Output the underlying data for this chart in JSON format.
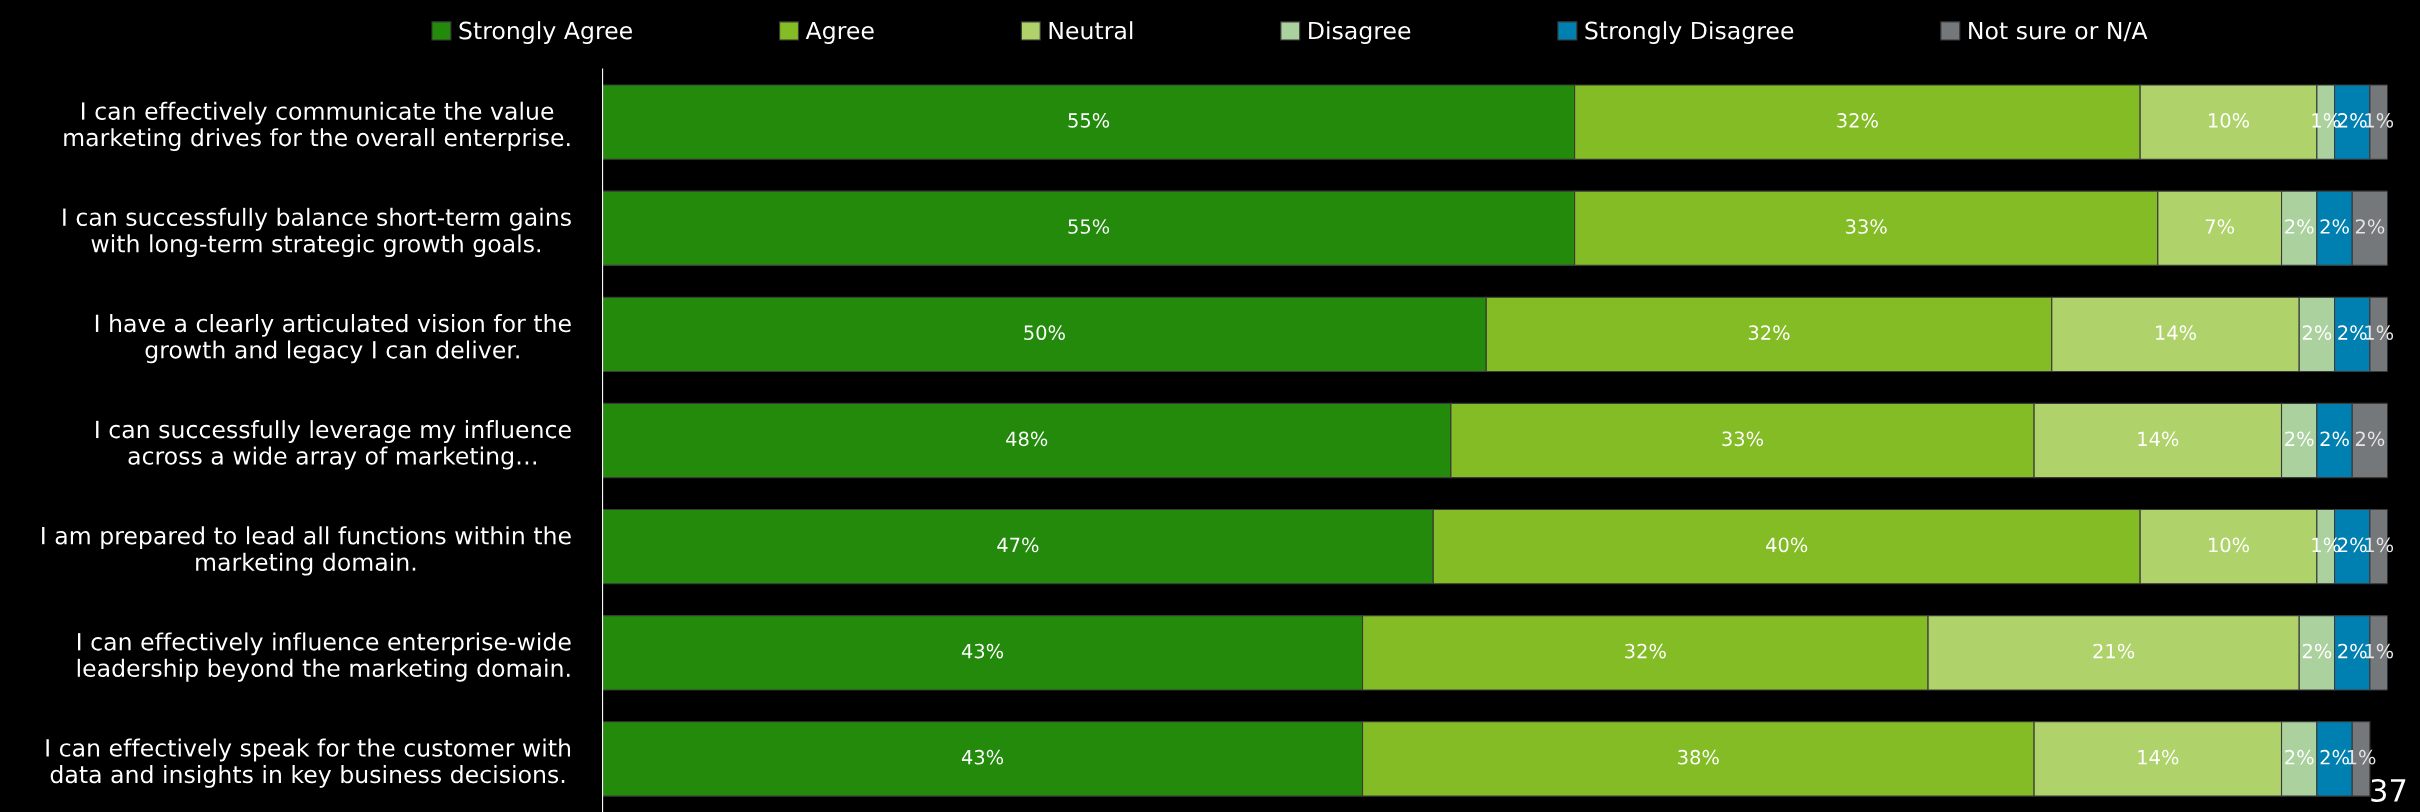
{
  "chart_data": {
    "type": "bar",
    "orientation": "horizontal",
    "stacked": true,
    "legend": "top",
    "grid": false,
    "tick_labels": "y",
    "categories": [
      "I can effectively communicate the value\nmarketing drives for the overall enterprise.",
      "I can successfully balance short-term gains\nwith long-term strategic growth goals.",
      "I have a clearly articulated vision for the\ngrowth and legacy I can deliver.",
      "I can successfully leverage my influence\nacross a wide array of marketing…",
      "I am prepared to lead all functions within the\nmarketing domain.",
      "I can effectively influence enterprise-wide\nleadership beyond the marketing domain.",
      "I can effectively speak for the customer with\ndata and insights in key business decisions."
    ],
    "series": [
      {
        "name": "Strongly Agree",
        "color": "#238a0c",
        "values": [
          55,
          55,
          50,
          48,
          47,
          43,
          43
        ],
        "value_labels": [
          "55%",
          "55%",
          "50%",
          "48%",
          "47%",
          "43%",
          "43%"
        ]
      },
      {
        "name": "Agree",
        "color": "#84bc25",
        "values": [
          32,
          33,
          32,
          33,
          40,
          32,
          38
        ],
        "value_labels": [
          "32%",
          "33%",
          "32%",
          "33%",
          "40%",
          "32%",
          "38%"
        ]
      },
      {
        "name": "Neutral",
        "color": "#afd36a",
        "values": [
          10,
          7,
          14,
          14,
          10,
          21,
          14
        ],
        "value_labels": [
          "10%",
          "7%",
          "14%",
          "14%",
          "10%",
          "21%",
          "14%"
        ]
      },
      {
        "name": "Disagree",
        "color": "#aad19e",
        "values": [
          1,
          2,
          2,
          2,
          1,
          2,
          2
        ],
        "value_labels": [
          "1%",
          "2%",
          "2%",
          "2%",
          "1%",
          "2%",
          "2%"
        ]
      },
      {
        "name": "Strongly Disagree",
        "color": "#0080b0",
        "values": [
          2,
          2,
          2,
          2,
          2,
          2,
          2
        ],
        "value_labels": [
          "2%",
          "2%",
          "2%",
          "2%",
          "2%",
          "2%",
          "2%"
        ]
      },
      {
        "name": "Not sure or N/A",
        "color": "#75787b",
        "values": [
          1,
          2,
          1,
          2,
          1,
          1,
          1
        ],
        "value_labels": [
          "1%",
          "2%",
          "1%",
          "2%",
          "1%",
          "1%",
          "1%"
        ]
      }
    ],
    "annotations": [
      "37"
    ]
  }
}
